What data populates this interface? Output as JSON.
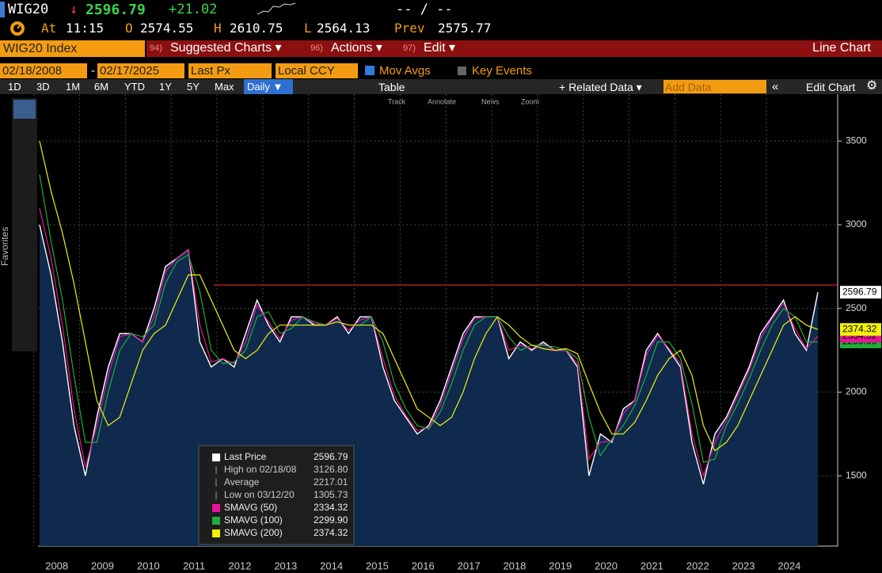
{
  "header": {
    "ticker": "WIG20",
    "arrow": "↓",
    "price": "2596.79",
    "change": "+21.02",
    "bid_ask": "-- / --",
    "at_label": "At",
    "time": "11:15",
    "open_label": "O",
    "open": "2574.55",
    "high_label": "H",
    "high": "2610.75",
    "low_label": "L",
    "low": "2564.13",
    "prev_label": "Prev",
    "prev": "2575.77"
  },
  "menu": {
    "security": "WIG20 Index",
    "items": [
      {
        "num": "94)",
        "label": "Suggested Charts ▾"
      },
      {
        "num": "96)",
        "label": "Actions ▾"
      },
      {
        "num": "97)",
        "label": "Edit ▾"
      }
    ],
    "view": "Line Chart"
  },
  "controls": {
    "start": "02/18/2008",
    "dash": "-",
    "end": "02/17/2025",
    "field": "Last Px",
    "currency": "Local CCY",
    "mov_avgs": "Mov Avgs",
    "key_events": "Key Events"
  },
  "toolbar": {
    "ranges": [
      "1D",
      "3D",
      "1M",
      "6M",
      "YTD",
      "1Y",
      "5Y",
      "Max"
    ],
    "frequency": "Daily ▼",
    "table": "Table",
    "related": "+ Related Data ▾",
    "add_data": "Add Data",
    "edit_chart": "Edit Chart"
  },
  "chart_tools": [
    "Track",
    "Annotate",
    "News",
    "Zoom"
  ],
  "sidebar": {
    "favorites": "Favorites"
  },
  "chart_data": {
    "type": "line",
    "categories": [
      "2008",
      null,
      null,
      null,
      "2009",
      null,
      null,
      null,
      "2010",
      null,
      null,
      null,
      "2011",
      null,
      null,
      null,
      "2012",
      null,
      null,
      null,
      "2013",
      null,
      null,
      null,
      "2014",
      null,
      null,
      null,
      "2015",
      null,
      null,
      null,
      "2016",
      null,
      null,
      null,
      "2017",
      null,
      null,
      null,
      "2018",
      null,
      null,
      null,
      "2019",
      null,
      null,
      null,
      "2020",
      null,
      null,
      null,
      "2021",
      null,
      null,
      null,
      "2022",
      null,
      null,
      null,
      "2023",
      null,
      null,
      null,
      "2024",
      null,
      null,
      null,
      null
    ],
    "series": [
      {
        "name": "Last Price",
        "color": "#ffffff",
        "area_color": "#0f2a4d",
        "last_label": "2596.79",
        "values": [
          3000,
          2700,
          2300,
          1800,
          1500,
          1850,
          2150,
          2350,
          2350,
          2300,
          2500,
          2750,
          2800,
          2850,
          2300,
          2150,
          2200,
          2150,
          2350,
          2550,
          2400,
          2300,
          2450,
          2450,
          2400,
          2400,
          2450,
          2350,
          2450,
          2450,
          2150,
          1950,
          1850,
          1750,
          1800,
          1950,
          2150,
          2350,
          2450,
          2450,
          2450,
          2200,
          2300,
          2250,
          2300,
          2250,
          2250,
          2150,
          1500,
          1750,
          1700,
          1900,
          1950,
          2250,
          2350,
          2250,
          2150,
          1700,
          1450,
          1750,
          1850,
          2000,
          2150,
          2350,
          2450,
          2550,
          2350,
          2250,
          2596.79
        ]
      },
      {
        "name": "SMAVG (50)",
        "color": "#e8139b",
        "last_label": "2334.32",
        "values": [
          3100,
          2800,
          2400,
          1900,
          1550,
          1800,
          2100,
          2330,
          2350,
          2300,
          2450,
          2720,
          2800,
          2850,
          2400,
          2180,
          2200,
          2170,
          2300,
          2520,
          2420,
          2320,
          2430,
          2450,
          2410,
          2400,
          2440,
          2370,
          2430,
          2450,
          2200,
          1980,
          1860,
          1770,
          1790,
          1920,
          2120,
          2320,
          2440,
          2450,
          2450,
          2250,
          2280,
          2260,
          2290,
          2250,
          2250,
          2170,
          1600,
          1700,
          1710,
          1870,
          1950,
          2220,
          2340,
          2260,
          2170,
          1750,
          1500,
          1700,
          1830,
          1980,
          2130,
          2320,
          2440,
          2530,
          2380,
          2260,
          2334.32
        ]
      },
      {
        "name": "SMAVG (100)",
        "color": "#1fae3a",
        "last_label": "2299.90",
        "values": [
          3300,
          2900,
          2550,
          2100,
          1700,
          1700,
          2000,
          2250,
          2350,
          2330,
          2400,
          2650,
          2780,
          2820,
          2600,
          2250,
          2170,
          2180,
          2250,
          2450,
          2480,
          2350,
          2380,
          2450,
          2420,
          2400,
          2420,
          2400,
          2400,
          2450,
          2300,
          2050,
          1900,
          1800,
          1780,
          1880,
          2050,
          2250,
          2400,
          2450,
          2450,
          2330,
          2250,
          2280,
          2280,
          2270,
          2250,
          2200,
          1850,
          1620,
          1720,
          1800,
          1920,
          2100,
          2300,
          2300,
          2200,
          1930,
          1580,
          1600,
          1800,
          1930,
          2080,
          2250,
          2400,
          2500,
          2450,
          2300,
          2299.9
        ]
      },
      {
        "name": "SMAVG (200)",
        "color": "#f2f20a",
        "last_label": "2374.32",
        "values": [
          3500,
          3200,
          2950,
          2650,
          2300,
          1950,
          1800,
          1850,
          2050,
          2250,
          2350,
          2400,
          2550,
          2700,
          2700,
          2550,
          2400,
          2250,
          2200,
          2250,
          2350,
          2400,
          2400,
          2400,
          2400,
          2400,
          2420,
          2400,
          2400,
          2400,
          2350,
          2200,
          2050,
          1900,
          1850,
          1800,
          1850,
          2000,
          2200,
          2350,
          2450,
          2400,
          2330,
          2280,
          2260,
          2250,
          2260,
          2230,
          2050,
          1880,
          1750,
          1750,
          1820,
          1950,
          2100,
          2200,
          2250,
          2100,
          1800,
          1650,
          1700,
          1800,
          1950,
          2100,
          2250,
          2400,
          2450,
          2400,
          2374.32
        ]
      }
    ],
    "stats": [
      {
        "label": "High on 02/18/08",
        "value": 3126.8,
        "value_label": "3126.80"
      },
      {
        "label": "Average",
        "value": 2217.01,
        "value_label": "2217.01"
      },
      {
        "label": "Low on 03/12/20",
        "value": 1305.73,
        "value_label": "1305.73"
      }
    ],
    "reference_line": {
      "value": 2640,
      "color": "#d82020"
    },
    "ylim": [
      1080,
      3780
    ],
    "yticks": [
      1500,
      2000,
      2500,
      3000,
      3500
    ],
    "grid": true
  }
}
